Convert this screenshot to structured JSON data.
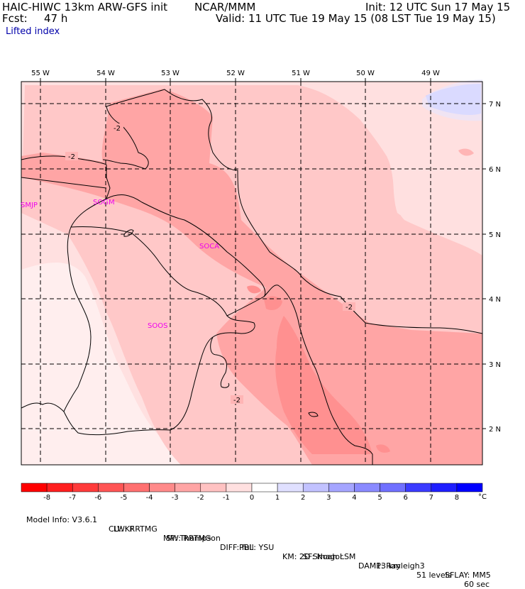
{
  "header": {
    "model": "HAIC-HIWC 13km ARW-GFS init",
    "org": "NCAR/MMM",
    "init": "Init: 12 UTC Sun 17 May 15",
    "fcst_label": "Fcst:",
    "fcst_value": "47 h",
    "valid": "Valid: 11 UTC Tue 19 May 15 (08 LST Tue 19 May 15)",
    "field": "Lifted index"
  },
  "map": {
    "lon_labels": [
      "55 W",
      "54 W",
      "53 W",
      "52 W",
      "51 W",
      "50 W",
      "49 W"
    ],
    "lat_labels": [
      "7 N",
      "6 N",
      "5 N",
      "4 N",
      "3 N",
      "2 N"
    ],
    "contour_labels": [
      "-2",
      "-2",
      "-2",
      "-2"
    ],
    "stations": [
      "SMJP",
      "SOGM",
      "SOCA",
      "SOOS"
    ]
  },
  "colorbar": {
    "ticks": [
      "-8",
      "-7",
      "-6",
      "-5",
      "-4",
      "-3",
      "-2",
      "-1",
      "0",
      "1",
      "2",
      "3",
      "4",
      "5",
      "6",
      "7",
      "8"
    ],
    "unit": "°C",
    "colors": [
      "#ff0000",
      "#ff1f1f",
      "#ff3b3b",
      "#ff5555",
      "#ff7070",
      "#ff8a8a",
      "#ffa5a5",
      "#ffc2c2",
      "#ffe0e0",
      "#ffffff",
      "#e0e0ff",
      "#c2c2ff",
      "#a5a5ff",
      "#8a8aff",
      "#7070ff",
      "#3b3bff",
      "#1f1fff",
      "#0000ff"
    ]
  },
  "model_info": {
    "line1": [
      "Model Info: V3.6.1",
      "CU: KF",
      "MP: Thompson",
      "PBL: YSU",
      "SF: Noah LSM",
      "13 km",
      "51 levels",
      "60 sec"
    ],
    "line2": [
      "LW: RRTMG",
      "SW: RRTMG",
      "DIFF: full",
      "KM: 2D Smagor",
      "DAMP: Rayleigh3",
      "SFLAY: MM5"
    ]
  }
}
